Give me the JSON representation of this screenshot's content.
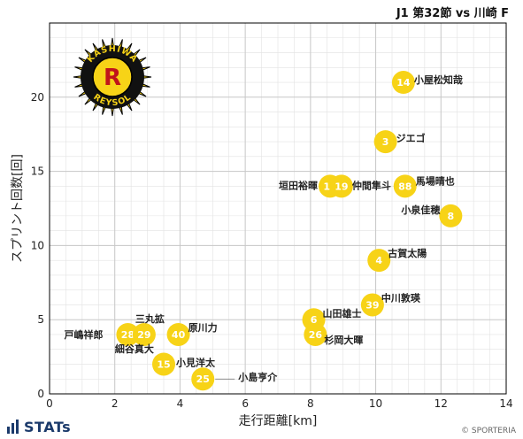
{
  "header": {
    "title": "J1 第32節 vs 川崎 F"
  },
  "footer": {
    "brand": "STATs",
    "copyright": "© SPORTERIA"
  },
  "logo": {
    "top_text": "KASHIWA",
    "bottom_text": "REYSOL",
    "icon": "kashiwa-reysol-crest-icon"
  },
  "colors": {
    "point": "#f7d317",
    "point_text": "#ffffff",
    "grid": "#c8c8c8",
    "axis": "#000000",
    "brand": "#1b3a6b"
  },
  "chart_data": {
    "type": "scatter",
    "title": "J1 第32節 vs 川崎 F",
    "xlabel": "走行距離[km]",
    "ylabel": "スプリント回数[回]",
    "xlim": [
      0,
      14
    ],
    "ylim": [
      0,
      25
    ],
    "xticks": [
      0,
      2,
      4,
      6,
      8,
      10,
      12,
      14
    ],
    "yticks": [
      0,
      5,
      10,
      15,
      20
    ],
    "grid": true,
    "points": [
      {
        "number": "14",
        "name": "小屋松知哉",
        "x": 10.85,
        "y": 21
      },
      {
        "number": "3",
        "name": "ジエゴ",
        "x": 10.3,
        "y": 17
      },
      {
        "number": "18",
        "name": "垣田裕暉",
        "x": 8.6,
        "y": 14
      },
      {
        "number": "19",
        "name": "仲間隼斗",
        "x": 8.95,
        "y": 14
      },
      {
        "number": "88",
        "name": "馬場晴也",
        "x": 10.9,
        "y": 14
      },
      {
        "number": "8",
        "name": "小泉佳穂",
        "x": 12.3,
        "y": 12
      },
      {
        "number": "4",
        "name": "古賀太陽",
        "x": 10.1,
        "y": 9
      },
      {
        "number": "39",
        "name": "中川敦瑛",
        "x": 9.9,
        "y": 6
      },
      {
        "number": "6",
        "name": "山田雄士",
        "x": 8.1,
        "y": 5
      },
      {
        "number": "26",
        "name": "杉岡大暉",
        "x": 8.15,
        "y": 4
      },
      {
        "number": "28",
        "name": "戸嶋祥郎",
        "x": 2.4,
        "y": 4
      },
      {
        "number": "29",
        "name": "三丸拡",
        "x": 2.9,
        "y": 4
      },
      {
        "number": "40",
        "name": "原川力",
        "x": 3.95,
        "y": 4
      },
      {
        "number": "15",
        "name": "小見洋太",
        "x": 3.5,
        "y": 2
      },
      {
        "number": "25",
        "name": "小島亨介",
        "x": 4.7,
        "y": 1
      }
    ],
    "annotations": [
      {
        "text": "細谷真大"
      }
    ]
  }
}
